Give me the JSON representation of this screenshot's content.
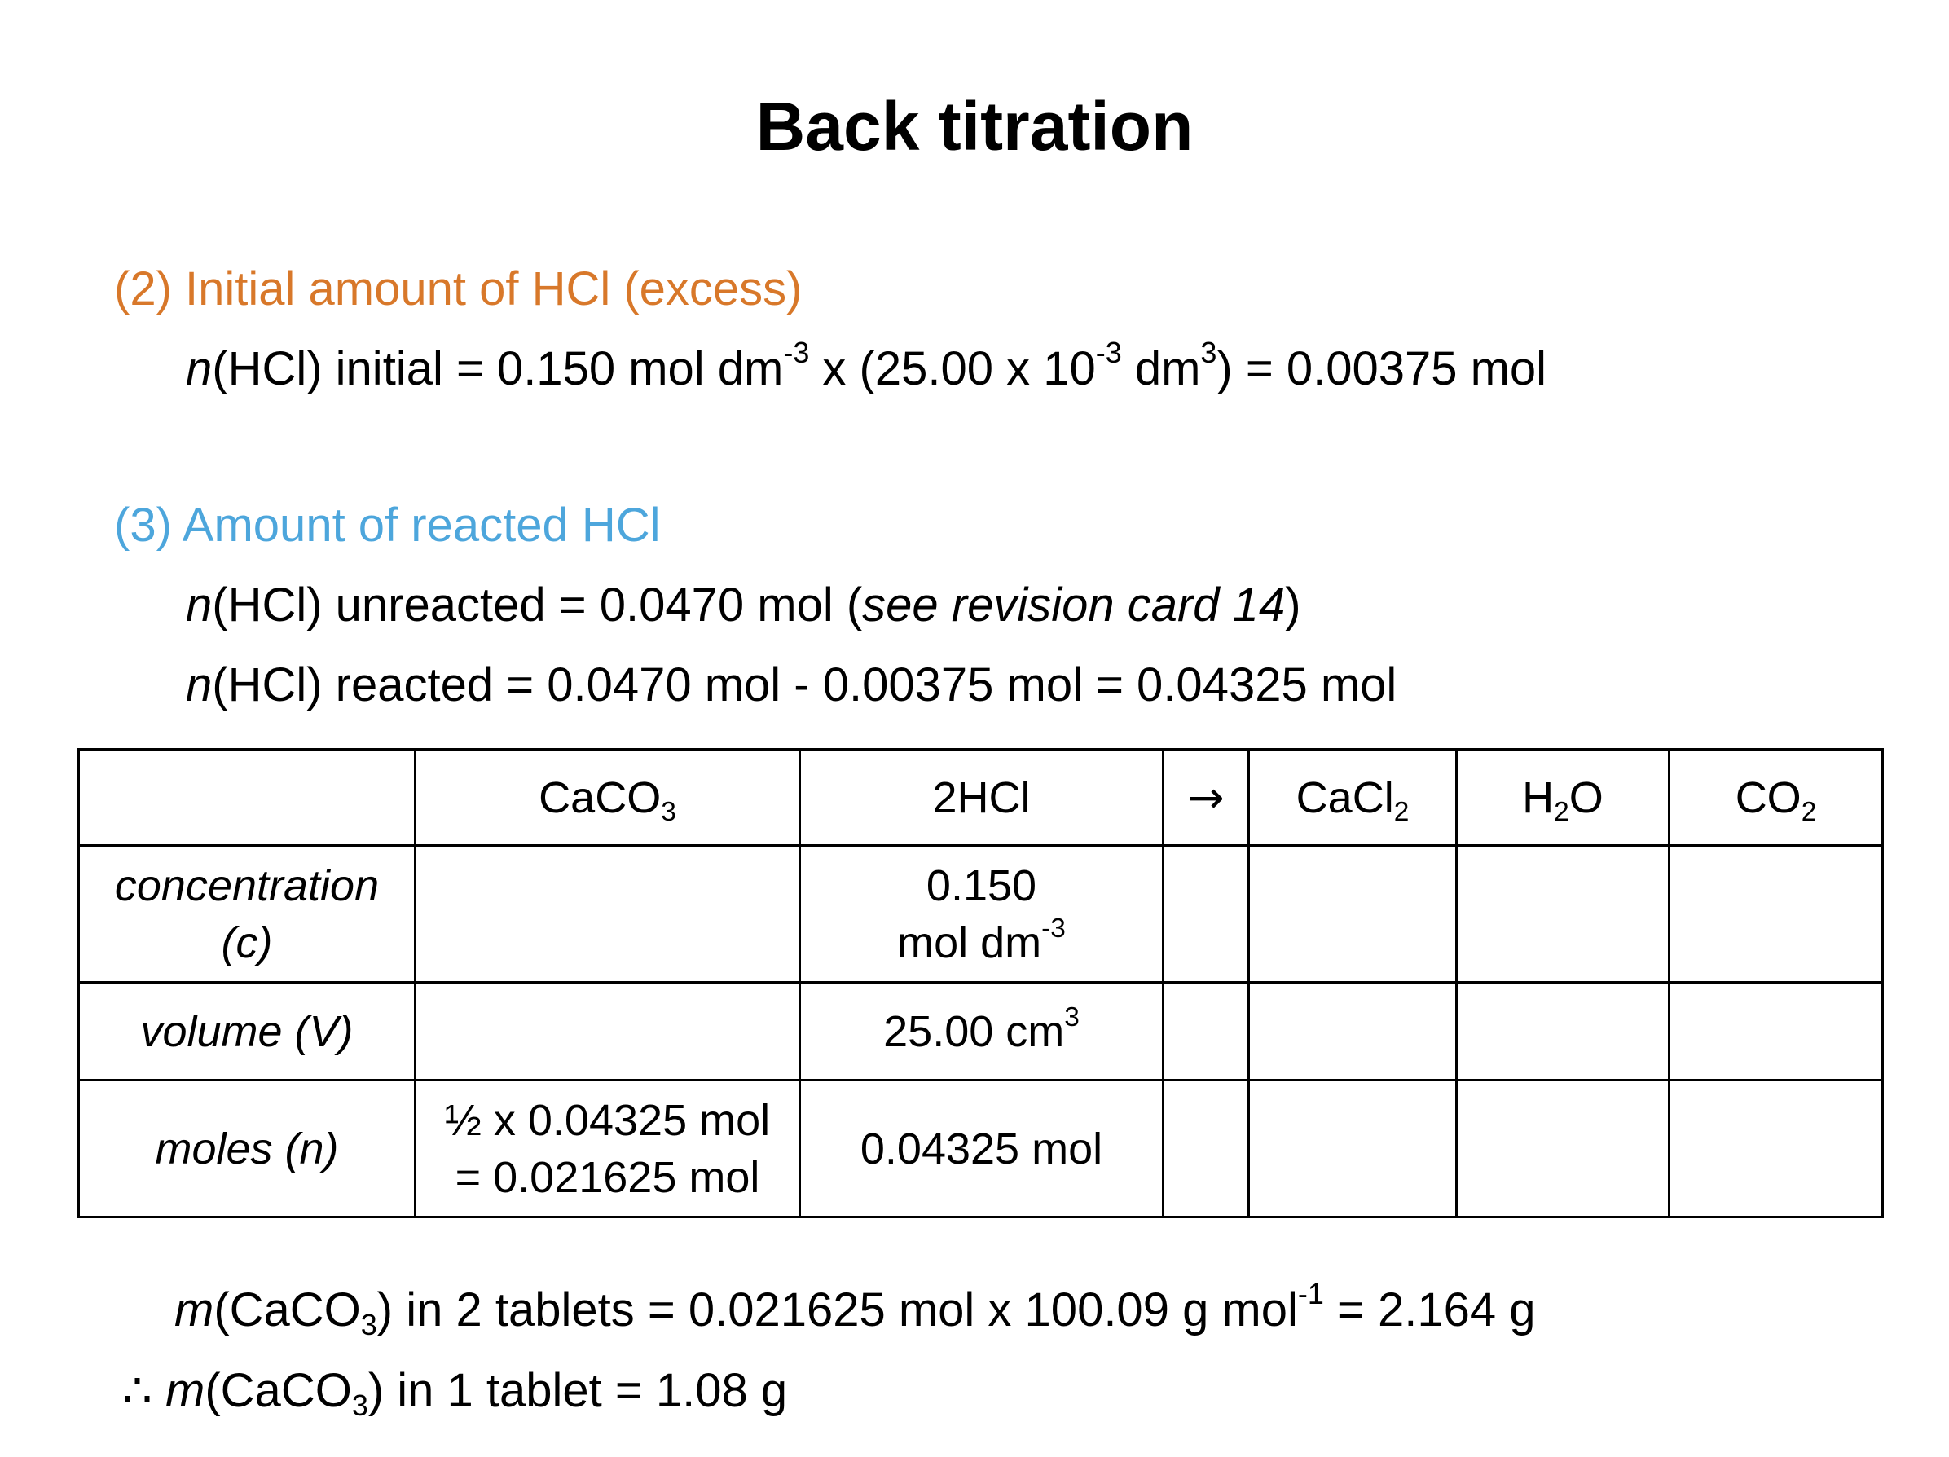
{
  "title": "Back titration",
  "section2": {
    "heading": "(2) Initial amount of HCl (excess)",
    "line": {
      "n": "n",
      "a": "(HCl) initial = 0.150 mol dm",
      "exp1": "-3",
      "b": " x (25.00 x 10",
      "exp2": "-3",
      "c": " dm",
      "exp3": "3",
      "d": ") = 0.00375 mol"
    }
  },
  "section3": {
    "heading": "(3) Amount of reacted HCl",
    "line1": {
      "n": "n",
      "a": "(HCl) unreacted = 0.0470 mol (",
      "ref": "see revision card 14",
      "b": ")"
    },
    "line2": {
      "n": "n",
      "a": "(HCl) reacted = 0.0470 mol - 0.00375 mol = 0.04325 mol"
    }
  },
  "table": {
    "header": {
      "caco3": {
        "main": "CaCO",
        "sub": "3"
      },
      "hcl": "2HCl",
      "arrow": "→",
      "cacl2": {
        "main": "CaCl",
        "sub": "2"
      },
      "h2o": {
        "a": "H",
        "sub": "2",
        "b": "O"
      },
      "co2": {
        "main": "CO",
        "sub": "2"
      }
    },
    "rows": {
      "concentration": {
        "label1": "concentration",
        "label2": "(c)",
        "hcl1": "0.150",
        "hcl2": "mol dm",
        "hcl2_exp": "-3"
      },
      "volume": {
        "label": "volume (V)",
        "hcl": "25.00 cm",
        "hcl_exp": "3"
      },
      "moles": {
        "label": "moles (n)",
        "caco3_1": "½ x 0.04325 mol",
        "caco3_2": "= 0.021625 mol",
        "hcl": "0.04325 mol"
      }
    }
  },
  "conclusion": {
    "line1": {
      "m": "m",
      "a": "(CaCO",
      "sub": "3",
      "b": ") in 2 tablets = 0.021625 mol x 100.09 g mol",
      "exp": "-1",
      "c": " = 2.164 g"
    },
    "line2": {
      "therefore": "∴",
      "m": "m",
      "a": "(CaCO",
      "sub": "3",
      "b": ") in 1 tablet = 1.08 g"
    }
  }
}
